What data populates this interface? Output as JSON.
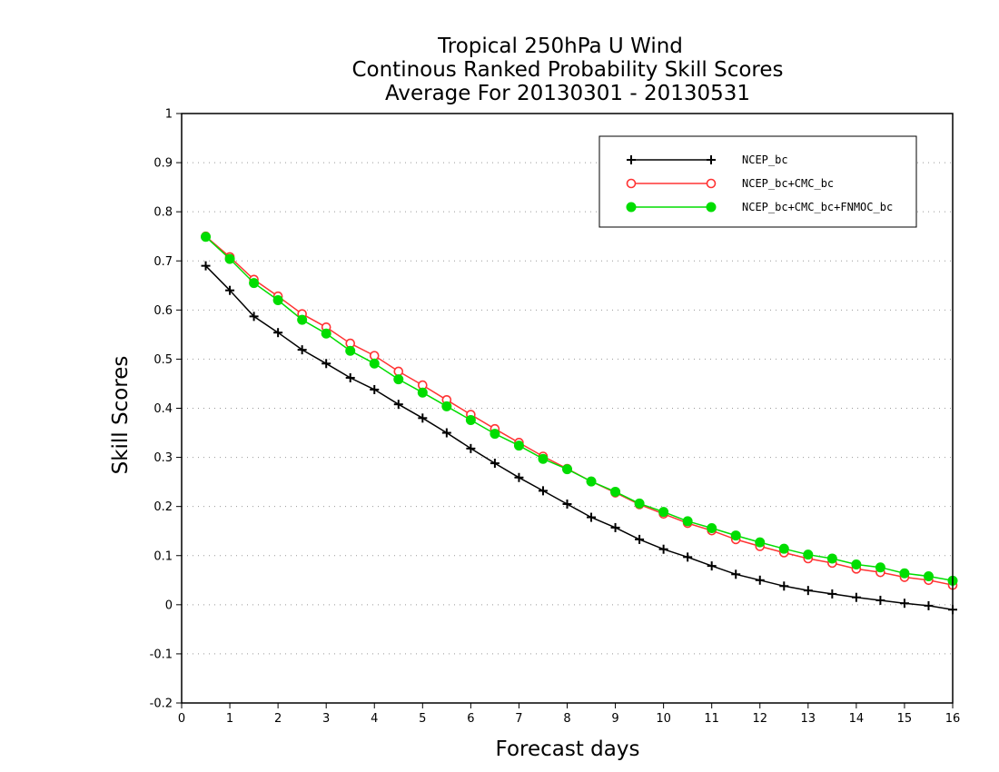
{
  "chart_data": {
    "type": "line",
    "title_lines": [
      "Tropical 250hPa U Wind",
      "Continous Ranked Probability Skill Scores",
      "Average For 20130301 - 20130531"
    ],
    "xlabel": "Forecast days",
    "ylabel": "Skill Scores",
    "xlim": [
      0,
      16
    ],
    "ylim": [
      -0.2,
      1
    ],
    "xticks": [
      0,
      1,
      2,
      3,
      4,
      5,
      6,
      7,
      8,
      9,
      10,
      11,
      12,
      13,
      14,
      15,
      16
    ],
    "xtick_labels": [
      "0",
      "1",
      "2",
      "3",
      "4",
      "5",
      "6",
      "7",
      "8",
      "9",
      "10",
      "11",
      "12",
      "13",
      "14",
      "15",
      "16"
    ],
    "yticks": [
      -0.2,
      -0.1,
      0,
      0.1,
      0.2,
      0.3,
      0.4,
      0.5,
      0.6,
      0.7,
      0.8,
      0.9,
      1
    ],
    "ytick_labels": [
      "-0.2",
      "-0.1",
      "0",
      "0.1",
      "0.2",
      "0.3",
      "0.4",
      "0.5",
      "0.6",
      "0.7",
      "0.8",
      "0.9",
      "1"
    ],
    "grid": "horizontal dotted",
    "legend_position": "top-right",
    "x": [
      0.5,
      1,
      1.5,
      2,
      2.5,
      3,
      3.5,
      4,
      4.5,
      5,
      5.5,
      6,
      6.5,
      7,
      7.5,
      8,
      8.5,
      9,
      9.5,
      10,
      10.5,
      11,
      11.5,
      12,
      12.5,
      13,
      13.5,
      14,
      14.5,
      15,
      15.5,
      16
    ],
    "series": [
      {
        "name": "NCEP_bc",
        "color": "#000000",
        "marker": "plus",
        "values": [
          0.69,
          0.64,
          0.587,
          0.554,
          0.519,
          0.491,
          0.462,
          0.438,
          0.408,
          0.38,
          0.35,
          0.318,
          0.288,
          0.259,
          0.232,
          0.205,
          0.178,
          0.157,
          0.133,
          0.113,
          0.097,
          0.079,
          0.062,
          0.05,
          0.038,
          0.029,
          0.022,
          0.015,
          0.009,
          0.003,
          -0.002,
          -0.01
        ]
      },
      {
        "name": "NCEP_bc+CMC_bc",
        "color": "#ff3333",
        "marker": "open-circle",
        "values": [
          0.75,
          0.708,
          0.662,
          0.628,
          0.592,
          0.565,
          0.532,
          0.507,
          0.475,
          0.447,
          0.417,
          0.387,
          0.358,
          0.33,
          0.302,
          0.277,
          0.251,
          0.228,
          0.204,
          0.185,
          0.166,
          0.151,
          0.133,
          0.119,
          0.106,
          0.094,
          0.085,
          0.073,
          0.066,
          0.056,
          0.05,
          0.04
        ]
      },
      {
        "name": "NCEP_bc+CMC_bc+FNMOC_bc",
        "color": "#00dd00",
        "marker": "filled-circle",
        "values": [
          0.749,
          0.704,
          0.655,
          0.62,
          0.58,
          0.552,
          0.517,
          0.491,
          0.459,
          0.432,
          0.404,
          0.376,
          0.348,
          0.324,
          0.297,
          0.276,
          0.251,
          0.23,
          0.206,
          0.189,
          0.17,
          0.156,
          0.141,
          0.127,
          0.114,
          0.102,
          0.094,
          0.082,
          0.076,
          0.064,
          0.058,
          0.049
        ]
      }
    ]
  }
}
